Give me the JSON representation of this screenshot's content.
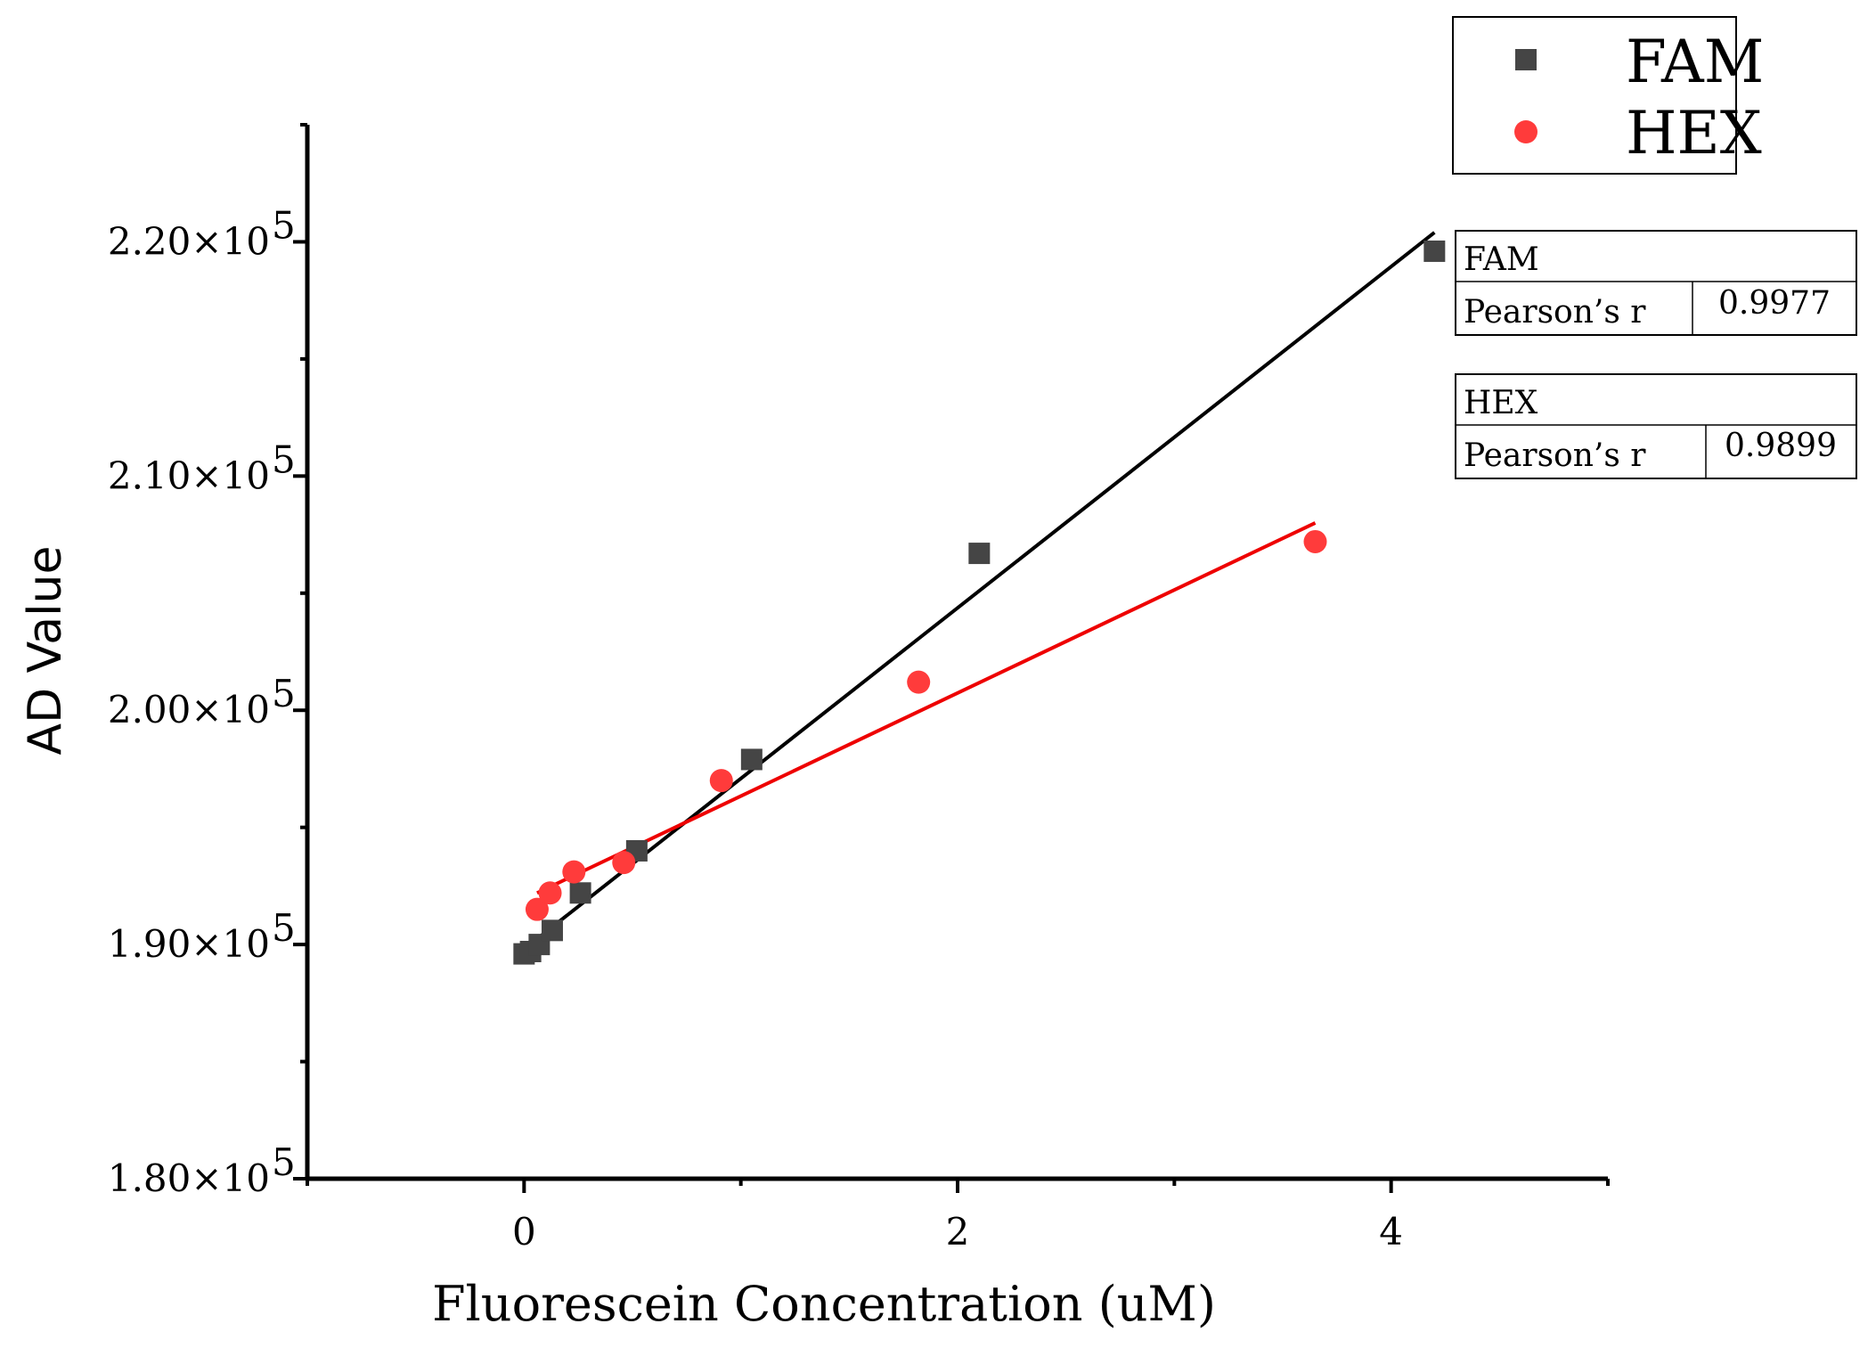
{
  "chart_data": {
    "type": "scatter",
    "xlabel": "Fluorescein Concentration (uM)",
    "ylabel": "AD Value",
    "xlim": [
      -1,
      5
    ],
    "ylim": [
      180000,
      225000
    ],
    "x_ticks": [
      0,
      2,
      4
    ],
    "y_ticks": [
      180000,
      190000,
      200000,
      210000,
      220000
    ],
    "y_tick_labels": [
      {
        "mantissa": "1.80×10",
        "exp": "5"
      },
      {
        "mantissa": "1.90×10",
        "exp": "5"
      },
      {
        "mantissa": "2.00×10",
        "exp": "5"
      },
      {
        "mantissa": "2.10×10",
        "exp": "5"
      },
      {
        "mantissa": "2.20×10",
        "exp": "5"
      }
    ],
    "legend_position": "top-right",
    "series": [
      {
        "name": "FAM",
        "marker": "square",
        "color": "#454545",
        "fit_color": "#000000",
        "points": [
          {
            "x": 0.0,
            "y": 189600
          },
          {
            "x": 0.03,
            "y": 189700
          },
          {
            "x": 0.07,
            "y": 190000
          },
          {
            "x": 0.13,
            "y": 190600
          },
          {
            "x": 0.26,
            "y": 192200
          },
          {
            "x": 0.52,
            "y": 194000
          },
          {
            "x": 1.05,
            "y": 197900
          },
          {
            "x": 2.1,
            "y": 206700
          },
          {
            "x": 4.2,
            "y": 219600
          }
        ],
        "fit": {
          "x1": 0.0,
          "y1": 189800,
          "x2": 4.2,
          "y2": 220400
        }
      },
      {
        "name": "HEX",
        "marker": "circle",
        "color": "#ff3b3b",
        "fit_color": "#ee0000",
        "points": [
          {
            "x": 0.06,
            "y": 191500
          },
          {
            "x": 0.12,
            "y": 192200
          },
          {
            "x": 0.23,
            "y": 193100
          },
          {
            "x": 0.46,
            "y": 193500
          },
          {
            "x": 0.91,
            "y": 197000
          },
          {
            "x": 1.82,
            "y": 201200
          },
          {
            "x": 3.65,
            "y": 207200
          }
        ],
        "fit": {
          "x1": 0.06,
          "y1": 192200,
          "x2": 3.65,
          "y2": 208000
        }
      }
    ],
    "stats": [
      {
        "title": "FAM",
        "label": "Pearson’s r",
        "value": "0.9977"
      },
      {
        "title": "HEX",
        "label": "Pearson’s r",
        "value": "0.9899"
      }
    ]
  }
}
